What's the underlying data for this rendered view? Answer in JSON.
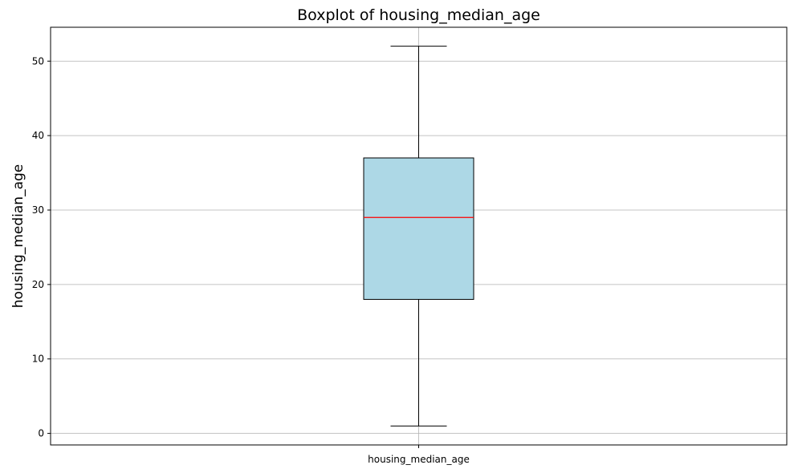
{
  "chart_data": {
    "type": "boxplot",
    "title": "Boxplot of housing_median_age",
    "xlabel": "",
    "ylabel": "housing_median_age",
    "categories": [
      "housing_median_age"
    ],
    "boxes": [
      {
        "category": "housing_median_age",
        "whisker_low": 1,
        "q1": 18,
        "median": 29,
        "q3": 37,
        "whisker_high": 52
      }
    ],
    "ylim": [
      -1.55,
      54.55
    ],
    "yticks": [
      0,
      10,
      20,
      30,
      40,
      50
    ],
    "ytick_labels": [
      "0",
      "10",
      "20",
      "30",
      "40",
      "50"
    ],
    "grid": true,
    "colors": {
      "box_fill": "#add8e6",
      "box_edge": "#000000",
      "median": "#ff0000",
      "whisker": "#000000",
      "grid": "#b0b0b0"
    }
  }
}
